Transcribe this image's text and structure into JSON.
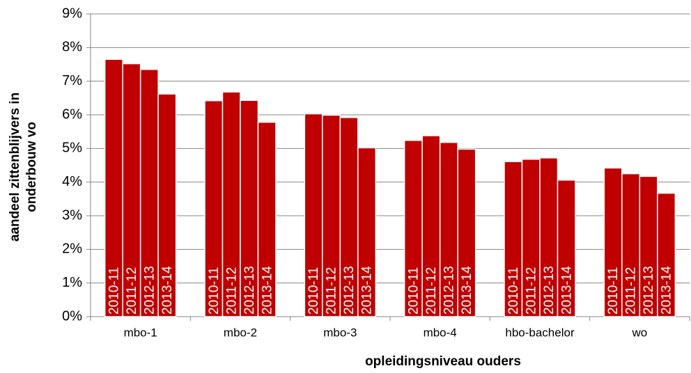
{
  "chart_data": {
    "type": "bar",
    "x_label": "opleidingsniveau ouders",
    "y_label": [
      "aandeel zittenblijvers in",
      "onderbouw vo"
    ],
    "categories": [
      "mbo-1",
      "mbo-2",
      "mbo-3",
      "mbo-4",
      "hbo-bachelor",
      "wo"
    ],
    "series": [
      {
        "name": "2010-11",
        "color": "#c00000",
        "values": [
          7.65,
          6.42,
          6.03,
          5.24,
          4.61,
          4.42
        ]
      },
      {
        "name": "2011-12",
        "color": "#c00000",
        "values": [
          7.52,
          6.68,
          5.99,
          5.38,
          4.68,
          4.25
        ]
      },
      {
        "name": "2012-13",
        "color": "#c00000",
        "values": [
          7.35,
          6.43,
          5.92,
          5.18,
          4.72,
          4.17
        ]
      },
      {
        "name": "2013-14",
        "color": "#c00000",
        "values": [
          6.62,
          5.78,
          5.02,
          4.98,
          4.06,
          3.67
        ]
      }
    ],
    "ylim": [
      0,
      9
    ],
    "yticks": [
      {
        "value": 0,
        "label": "0%"
      },
      {
        "value": 1,
        "label": "1%"
      },
      {
        "value": 2,
        "label": "2%"
      },
      {
        "value": 3,
        "label": "3%"
      },
      {
        "value": 4,
        "label": "4%"
      },
      {
        "value": 5,
        "label": "5%"
      },
      {
        "value": 6,
        "label": "6%"
      },
      {
        "value": 7,
        "label": "7%"
      },
      {
        "value": 8,
        "label": "8%"
      },
      {
        "value": 9,
        "label": "9%"
      }
    ],
    "grid": true
  }
}
